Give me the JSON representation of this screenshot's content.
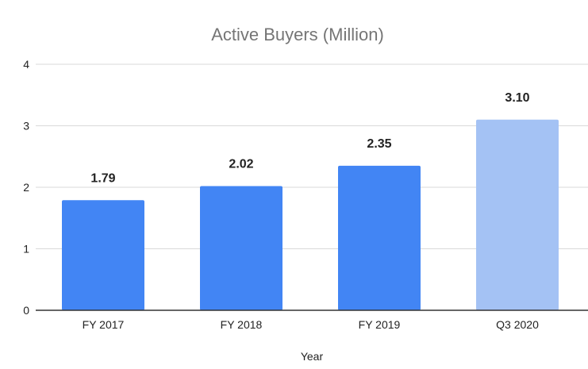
{
  "chart_data": {
    "type": "bar",
    "title": "Active Buyers (Million)",
    "xlabel": "Year",
    "ylabel": "",
    "categories": [
      "FY 2017",
      "FY 2018",
      "FY 2019",
      "Q3 2020"
    ],
    "values": [
      1.79,
      2.02,
      2.35,
      3.1
    ],
    "data_labels": [
      "1.79",
      "2.02",
      "2.35",
      "3.10"
    ],
    "bar_colors": [
      "#4285f4",
      "#4285f4",
      "#4285f4",
      "#a4c2f4"
    ],
    "ylim": [
      0,
      4
    ],
    "yticks": [
      0,
      1,
      2,
      3,
      4
    ],
    "ytick_labels": [
      "0",
      "1",
      "2",
      "3",
      "4"
    ],
    "grid": true,
    "legend": "none"
  }
}
